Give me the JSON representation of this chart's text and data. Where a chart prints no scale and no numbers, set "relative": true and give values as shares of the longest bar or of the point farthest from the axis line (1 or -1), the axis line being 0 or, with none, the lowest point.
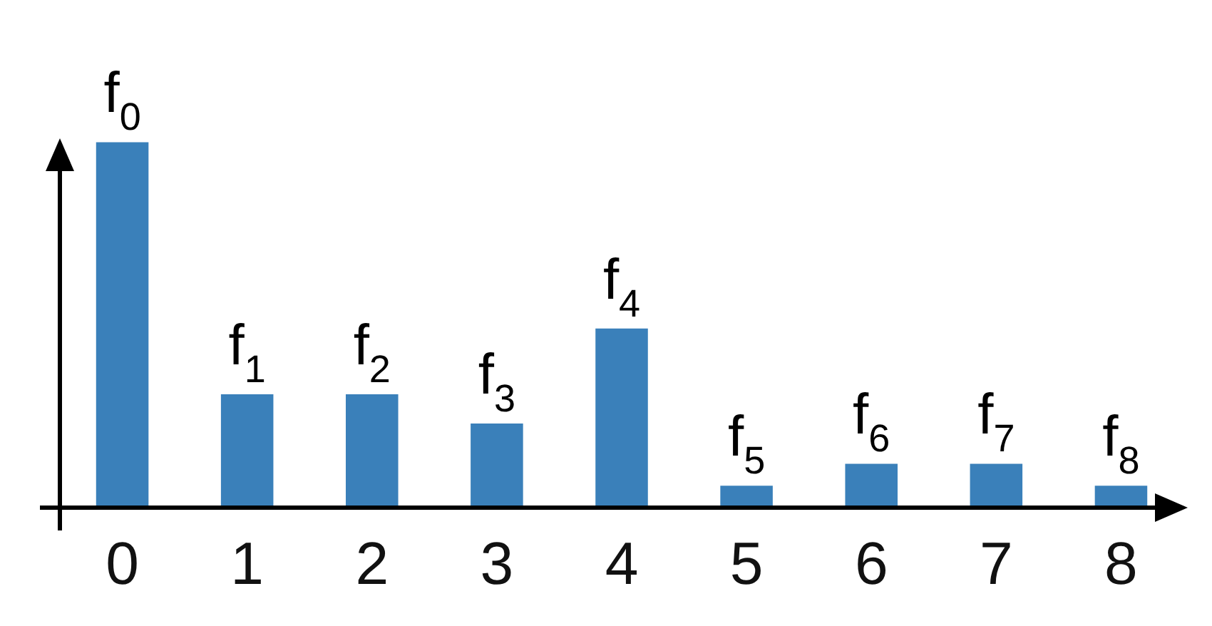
{
  "chart_data": {
    "type": "bar",
    "relative": true,
    "categories": [
      "0",
      "1",
      "2",
      "3",
      "4",
      "5",
      "6",
      "7",
      "8"
    ],
    "values": [
      1,
      0.31,
      0.31,
      0.23,
      0.49,
      0.06,
      0.12,
      0.12,
      0.06
    ],
    "annotations": [
      {
        "text": "f$_{0}$",
        "x": "0",
        "y": 1
      },
      {
        "text": "f$_{1}$",
        "x": "1",
        "y": 0.31
      },
      {
        "text": "f$_{2}$",
        "x": "2",
        "y": 0.31
      },
      {
        "text": "f$_{3}$",
        "x": "3",
        "y": 0.23
      },
      {
        "text": "f$_{4}$",
        "x": "4",
        "y": 0.49
      },
      {
        "text": "f$_{5}$",
        "x": "5",
        "y": 0.06
      },
      {
        "text": "f$_{6}$",
        "x": "6",
        "y": 0.12
      },
      {
        "text": "f$_{7}$",
        "x": "7",
        "y": 0.12
      },
      {
        "text": "f$_{8}$",
        "x": "8",
        "y": 0.06
      }
    ],
    "color": "#3a80ba"
  }
}
